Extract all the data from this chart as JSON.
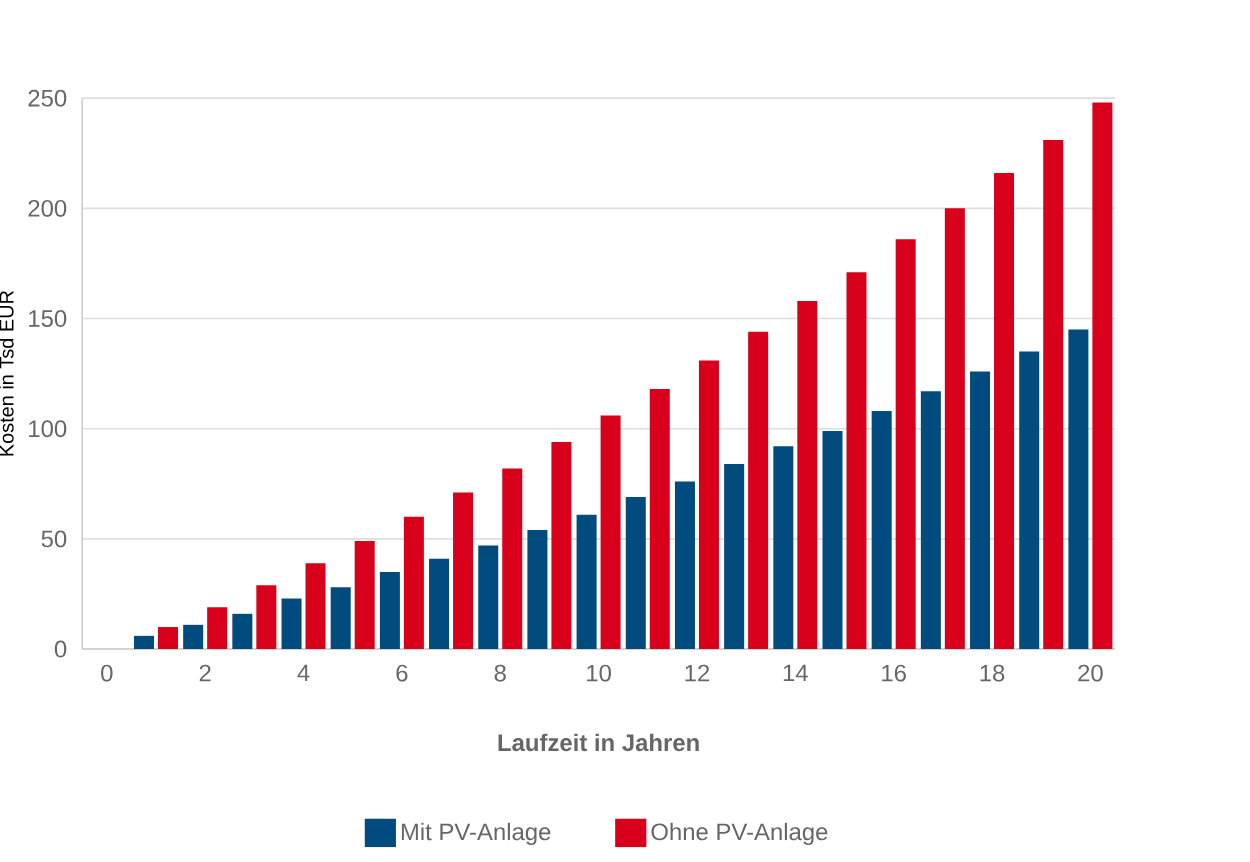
{
  "chart_data": {
    "type": "bar",
    "xlabel": "Laufzeit in Jahren",
    "ylabel": "Kosten in Tsd EUR",
    "categories": [
      "0",
      null,
      "2",
      null,
      "4",
      null,
      "6",
      null,
      "8",
      null,
      "10",
      null,
      "12",
      null,
      "14",
      null,
      "16",
      null,
      "18",
      null,
      "20"
    ],
    "series": [
      {
        "name": "Mit PV-Anlage",
        "color": "#024b7e",
        "values": [
          0,
          6,
          11,
          16,
          23,
          28,
          35,
          41,
          47,
          54,
          61,
          69,
          76,
          84,
          92,
          99,
          108,
          117,
          126,
          135,
          145
        ]
      },
      {
        "name": "Ohne PV-Anlage",
        "color": "#d9001b",
        "values": [
          0,
          10,
          19,
          29,
          39,
          49,
          60,
          71,
          82,
          94,
          106,
          118,
          131,
          144,
          158,
          171,
          186,
          200,
          216,
          231,
          248
        ]
      }
    ],
    "ylim": [
      0,
      250
    ],
    "yticks": [
      0,
      50,
      100,
      150,
      200,
      250
    ],
    "grid": "y",
    "legend": "bottom"
  }
}
